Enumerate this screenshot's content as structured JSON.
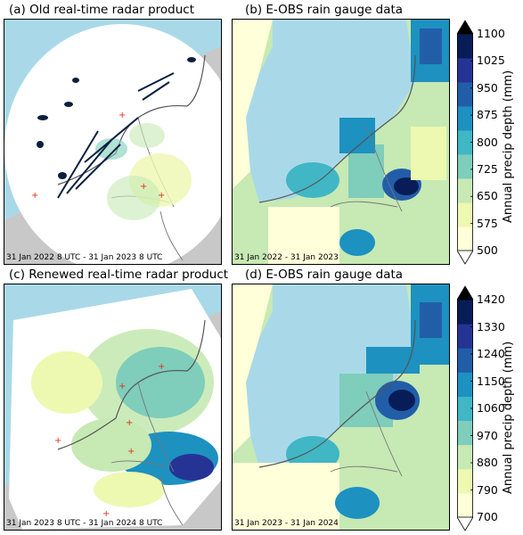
{
  "colors": {
    "sea": "#a9d9e9",
    "land_gray": "#c8c8c8",
    "radar_disk": "#ffffff",
    "coast": "#555555",
    "border": "#777777",
    "site_marker": "#e03020"
  },
  "panels": [
    {
      "id": "a",
      "title": "(a) Old real-time radar product",
      "stamp": "31 Jan 2022 8 UTC - 31 Jan 2023 8 UTC"
    },
    {
      "id": "b",
      "title": "(b) E-OBS rain gauge data",
      "stamp": "31 Jan 2022 - 31 Jan 2023"
    },
    {
      "id": "c",
      "title": "(c) Renewed real-time radar product",
      "stamp": "31 Jan 2023 8 UTC - 31 Jan 2024 8 UTC"
    },
    {
      "id": "d",
      "title": "(d) E-OBS rain gauge data",
      "stamp": "31 Jan 2023 - 31 Jan 2024"
    }
  ],
  "chart_data": [
    {
      "type": "heatmap",
      "panels": [
        "a",
        "b"
      ],
      "colorbar": {
        "label": "Annual precip depth (mm)",
        "ticks": [
          500,
          575,
          650,
          725,
          800,
          875,
          950,
          1025,
          1100
        ],
        "colors": [
          "#ffffd9",
          "#edf8b1",
          "#c7e9b4",
          "#7fcdbb",
          "#41b6c4",
          "#1d91c0",
          "#225ea8",
          "#253494",
          "#081d58"
        ],
        "extend": "both"
      }
    },
    {
      "type": "heatmap",
      "panels": [
        "c",
        "d"
      ],
      "colorbar": {
        "label": "Annual precip depth (mm)",
        "ticks": [
          700,
          790,
          880,
          970,
          1060,
          1150,
          1240,
          1330,
          1420
        ],
        "colors": [
          "#ffffd9",
          "#edf8b1",
          "#c7e9b4",
          "#7fcdbb",
          "#41b6c4",
          "#1d91c0",
          "#225ea8",
          "#253494",
          "#081d58"
        ],
        "extend": "both"
      }
    }
  ]
}
